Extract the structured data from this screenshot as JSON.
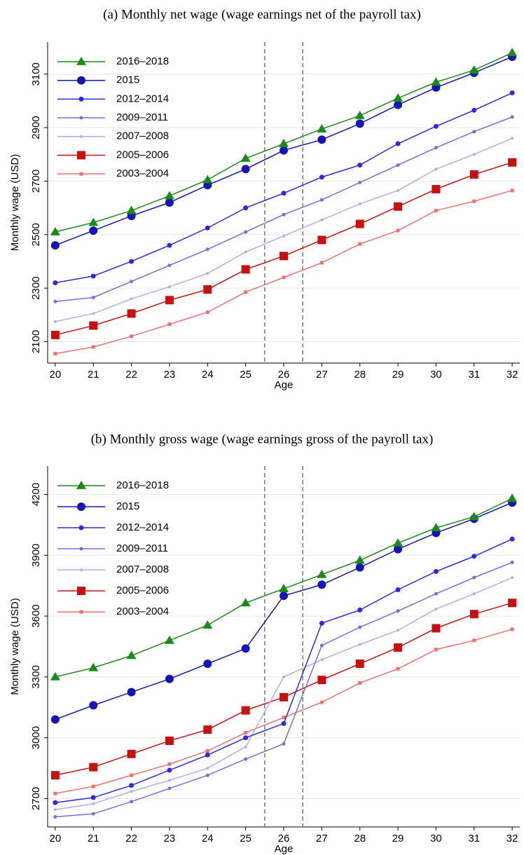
{
  "chart_data": [
    {
      "type": "line",
      "title": "(a) Monthly net wage (wage earnings net of the payroll tax)",
      "x_label": "Age",
      "y_label": "Monthly wage (USD)",
      "x": [
        20,
        21,
        22,
        23,
        24,
        25,
        26,
        27,
        28,
        29,
        30,
        31,
        32
      ],
      "xlim": [
        19.8,
        32.2
      ],
      "xticks": [
        20,
        21,
        22,
        23,
        24,
        25,
        26,
        27,
        28,
        29,
        30,
        31,
        32
      ],
      "ylim": [
        2020,
        3220
      ],
      "yticks": [
        2100,
        2300,
        2500,
        2700,
        2900,
        3100
      ],
      "grid": true,
      "legend": "upper left",
      "vlines": [
        25.5,
        26.5
      ],
      "series": [
        {
          "name": "2016–2018",
          "color": "#1a8a1a",
          "marker": "triangle",
          "marker_size": 7,
          "values": [
            2510,
            2545,
            2590,
            2645,
            2705,
            2785,
            2840,
            2895,
            2945,
            3010,
            3070,
            3115,
            3180
          ]
        },
        {
          "name": "2015",
          "color": "#1515b5",
          "marker": "circle",
          "marker_size": 6,
          "values": [
            2460,
            2515,
            2570,
            2620,
            2685,
            2745,
            2815,
            2855,
            2915,
            2985,
            3050,
            3105,
            3165
          ]
        },
        {
          "name": "2012–2014",
          "color": "#2a2adf",
          "marker": "circle",
          "marker_size": 3.5,
          "values": [
            2320,
            2345,
            2400,
            2460,
            2525,
            2600,
            2655,
            2715,
            2760,
            2840,
            2905,
            2965,
            3030
          ]
        },
        {
          "name": "2009–2011",
          "color": "#7070e0",
          "marker": "circle",
          "marker_size": 2.5,
          "values": [
            2250,
            2265,
            2325,
            2385,
            2445,
            2510,
            2575,
            2630,
            2695,
            2760,
            2825,
            2885,
            2940
          ]
        },
        {
          "name": "2007–2008",
          "color": "#aeaef2",
          "marker": "circle",
          "marker_size": 2,
          "values": [
            2175,
            2205,
            2260,
            2305,
            2355,
            2435,
            2495,
            2555,
            2615,
            2665,
            2745,
            2800,
            2860
          ]
        },
        {
          "name": "2005–2006",
          "color": "#c81010",
          "marker": "square",
          "marker_size": 6,
          "values": [
            2125,
            2160,
            2205,
            2255,
            2295,
            2370,
            2420,
            2480,
            2540,
            2605,
            2670,
            2725,
            2770
          ]
        },
        {
          "name": "2003–2004",
          "color": "#f07070",
          "marker": "square",
          "marker_size": 2.5,
          "values": [
            2055,
            2080,
            2120,
            2165,
            2210,
            2285,
            2340,
            2395,
            2465,
            2515,
            2590,
            2625,
            2665
          ]
        }
      ]
    },
    {
      "type": "line",
      "title": "(b) Monthly gross wage (wage earnings gross of the payroll tax)",
      "x_label": "Age",
      "y_label": "Monthly wage (USD)",
      "x": [
        20,
        21,
        22,
        23,
        24,
        25,
        26,
        27,
        28,
        29,
        30,
        31,
        32
      ],
      "xlim": [
        19.8,
        32.2
      ],
      "xticks": [
        20,
        21,
        22,
        23,
        24,
        25,
        26,
        27,
        28,
        29,
        30,
        31,
        32
      ],
      "ylim": [
        2560,
        4340
      ],
      "yticks": [
        2700,
        3000,
        3300,
        3600,
        3900,
        4200
      ],
      "grid": true,
      "legend": "upper left",
      "vlines": [
        25.5,
        26.5
      ],
      "series": [
        {
          "name": "2016–2018",
          "color": "#1a8a1a",
          "marker": "triangle",
          "marker_size": 7,
          "values": [
            3300,
            3345,
            3405,
            3480,
            3555,
            3665,
            3735,
            3805,
            3875,
            3960,
            4035,
            4090,
            4180
          ]
        },
        {
          "name": "2015",
          "color": "#1515b5",
          "marker": "circle",
          "marker_size": 6,
          "values": [
            3090,
            3160,
            3225,
            3290,
            3365,
            3440,
            3700,
            3755,
            3840,
            3930,
            4010,
            4080,
            4160
          ]
        },
        {
          "name": "2012–2014",
          "color": "#2a2adf",
          "marker": "circle",
          "marker_size": 3.5,
          "values": [
            2680,
            2705,
            2765,
            2840,
            2915,
            3000,
            3070,
            3565,
            3630,
            3730,
            3820,
            3895,
            3980
          ]
        },
        {
          "name": "2009–2011",
          "color": "#7070e0",
          "marker": "circle",
          "marker_size": 2.5,
          "values": [
            2610,
            2625,
            2685,
            2750,
            2815,
            2895,
            2970,
            3455,
            3545,
            3625,
            3710,
            3790,
            3865
          ]
        },
        {
          "name": "2007–2008",
          "color": "#aeaef2",
          "marker": "circle",
          "marker_size": 2,
          "values": [
            2645,
            2675,
            2735,
            2790,
            2850,
            2955,
            3300,
            3385,
            3460,
            3530,
            3635,
            3710,
            3790
          ]
        },
        {
          "name": "2005–2006",
          "color": "#c81010",
          "marker": "square",
          "marker_size": 6,
          "values": [
            2815,
            2855,
            2920,
            2985,
            3040,
            3135,
            3200,
            3285,
            3365,
            3445,
            3540,
            3610,
            3665
          ]
        },
        {
          "name": "2003–2004",
          "color": "#f07070",
          "marker": "square",
          "marker_size": 2.5,
          "values": [
            2725,
            2760,
            2815,
            2870,
            2935,
            3025,
            3100,
            3175,
            3270,
            3340,
            3435,
            3480,
            3535
          ]
        }
      ]
    }
  ]
}
